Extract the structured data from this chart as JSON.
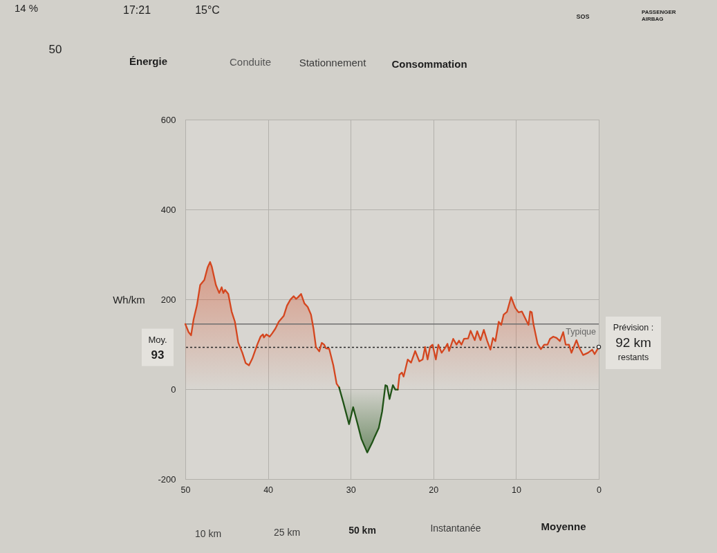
{
  "chart_data": {
    "type": "area",
    "title": "Énergie",
    "ylabel": "Wh/km",
    "xlim": [
      50,
      0
    ],
    "xticks": [
      50,
      40,
      30,
      20,
      10,
      0
    ],
    "ylim": [
      -200,
      600
    ],
    "yticks": [
      -200,
      0,
      200,
      400,
      600
    ],
    "grid": true,
    "x": [
      50,
      49.6,
      49.3,
      49.0,
      48.6,
      48.2,
      47.7,
      47.3,
      47.0,
      46.8,
      46.3,
      45.9,
      45.6,
      45.4,
      45.2,
      44.8,
      44.4,
      44.0,
      43.6,
      43.1,
      42.7,
      42.3,
      41.9,
      41.3,
      40.9,
      40.6,
      40.5,
      40.2,
      39.8,
      39.5,
      39.1,
      38.7,
      38.1,
      37.7,
      37.3,
      36.9,
      36.6,
      36.4,
      36.0,
      35.6,
      35.2,
      34.8,
      34.5,
      34.2,
      33.8,
      33.5,
      33.2,
      33.0,
      32.6,
      32.1,
      31.7,
      31.4,
      30.9,
      30.2,
      29.7,
      29.2,
      28.7,
      28.0,
      27.4,
      27.1,
      26.6,
      26.2,
      25.8,
      25.6,
      25.3,
      24.9,
      24.6,
      24.3,
      24.1,
      23.8,
      23.6,
      23.4,
      23.1,
      22.7,
      22.2,
      21.7,
      21.3,
      21.0,
      20.7,
      20.4,
      20.1,
      19.7,
      19.4,
      19.0,
      18.5,
      18.3,
      18.1,
      17.6,
      17.2,
      16.9,
      16.6,
      16.3,
      15.8,
      15.5,
      15.0,
      14.7,
      14.3,
      13.9,
      13.5,
      13.1,
      12.8,
      12.5,
      12.1,
      11.8,
      11.5,
      11.1,
      10.6,
      10.1,
      9.7,
      9.3,
      8.9,
      8.5,
      8.3,
      8.1,
      7.9,
      7.4,
      7.0,
      6.6,
      6.2,
      5.9,
      5.5,
      5.1,
      4.7,
      4.3,
      4.0,
      3.6,
      3.3,
      2.7,
      2.4,
      1.9,
      1.3,
      0.8,
      0.5,
      0
    ],
    "series": [
      {
        "color": "#d4461f",
        "values": [
          145,
          127,
          120,
          155,
          186,
          232,
          243,
          271,
          283,
          273,
          232,
          214,
          227,
          214,
          221,
          212,
          173,
          150,
          104,
          81,
          58,
          53,
          68,
          99,
          117,
          122,
          115,
          122,
          117,
          124,
          135,
          150,
          163,
          186,
          199,
          207,
          201,
          204,
          212,
          191,
          183,
          166,
          135,
          94,
          84,
          103,
          99,
          91,
          90,
          53,
          12,
          4,
          null,
          null,
          null,
          null,
          null,
          null,
          null,
          null,
          null,
          null,
          null,
          null,
          null,
          null,
          null,
          -1,
          32,
          37,
          28,
          43,
          66,
          59,
          85,
          62,
          66,
          94,
          66,
          94,
          99,
          66,
          99,
          81,
          94,
          101,
          85,
          112,
          99,
          108,
          99,
          112,
          113,
          130,
          109,
          129,
          109,
          132,
          108,
          88,
          114,
          107,
          150,
          143,
          166,
          172,
          205,
          181,
          171,
          173,
          158,
          143,
          173,
          171,
          145,
          101,
          89,
          99,
          99,
          112,
          117,
          114,
          107,
          127,
          99,
          99,
          81,
          109,
          94,
          76,
          81,
          88,
          78,
          94
        ]
      },
      {
        "color": "#1f5216",
        "values": [
          null,
          null,
          null,
          null,
          null,
          null,
          null,
          null,
          null,
          null,
          null,
          null,
          null,
          null,
          null,
          null,
          null,
          null,
          null,
          null,
          null,
          null,
          null,
          null,
          null,
          null,
          null,
          null,
          null,
          null,
          null,
          null,
          null,
          null,
          null,
          null,
          null,
          null,
          null,
          null,
          null,
          null,
          null,
          null,
          null,
          null,
          null,
          null,
          null,
          null,
          null,
          4,
          -29,
          -78,
          -40,
          -75,
          -111,
          -141,
          -119,
          -106,
          -86,
          -50,
          9,
          7,
          -22,
          9,
          -1,
          -1,
          null,
          null,
          null,
          null,
          null,
          null,
          null,
          null,
          null,
          null,
          null,
          null,
          null,
          null,
          null,
          null,
          null,
          null,
          null,
          null,
          null,
          null,
          null,
          null,
          null,
          null,
          null,
          null,
          null,
          null,
          null,
          null,
          null,
          null,
          null,
          null,
          null,
          null,
          null,
          null,
          null,
          null,
          null,
          null,
          null,
          null,
          null,
          null,
          null,
          null,
          null,
          null,
          null,
          null,
          null,
          null,
          null,
          null,
          null,
          null,
          null,
          null,
          null,
          null,
          null,
          null
        ]
      }
    ],
    "ref_lines": [
      {
        "axis": "y",
        "value": 145,
        "label": "Typique",
        "color": "#6e6e6e",
        "line_style": "solid"
      },
      {
        "axis": "y",
        "value": 93,
        "label": "Moy.\n93",
        "color": "#262626",
        "line_style": "dotted"
      }
    ],
    "annotations": [
      "14 %",
      "17:21",
      "15°C",
      "SOS",
      "PASSENGER\nAIRBAG",
      "50",
      "Conduite",
      "Stationnement",
      "Consommation",
      "10 km",
      "25 km",
      "50 km",
      "Instantanée",
      "Moyenne",
      {
        "text": "Prévision :\n92 km\nrestants",
        "x": 0,
        "y": 94
      }
    ]
  }
}
